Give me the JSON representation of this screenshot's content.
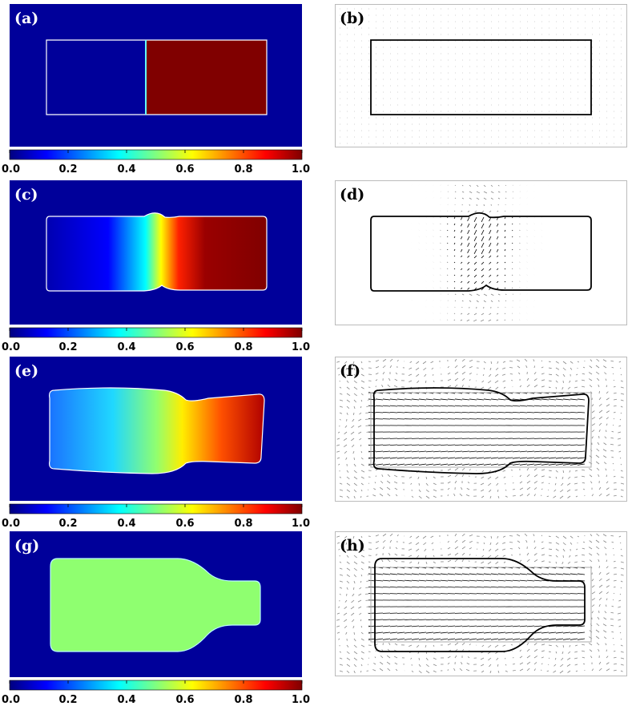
{
  "panels": [
    {
      "label": "(a)"
    },
    {
      "label": "(b)"
    },
    {
      "label": "(c)"
    },
    {
      "label": "(d)"
    },
    {
      "label": "(e)"
    },
    {
      "label": "(f)"
    },
    {
      "label": "(g)"
    },
    {
      "label": "(h)"
    }
  ],
  "colorbars": [
    {
      "ticks": [
        {
          "value": 0,
          "label": "0.0"
        },
        0.2,
        0.4,
        0.6,
        0.8,
        {
          "value": 1,
          "label": "1.0"
        }
      ]
    },
    {
      "ticks": [
        {
          "value": 0,
          "label": "0.0"
        },
        0.2,
        0.4,
        0.6,
        0.8,
        {
          "value": 1,
          "label": "1.0"
        }
      ]
    },
    {
      "ticks": [
        {
          "value": 0,
          "label": "0.0"
        },
        0.2,
        0.4,
        0.6,
        0.8,
        {
          "value": 1,
          "label": "1.0"
        }
      ]
    },
    {
      "ticks": [
        {
          "value": 0,
          "label": "0.0"
        },
        0.2,
        0.4,
        0.6,
        0.8,
        {
          "value": 1,
          "label": "1.0"
        }
      ]
    }
  ]
}
